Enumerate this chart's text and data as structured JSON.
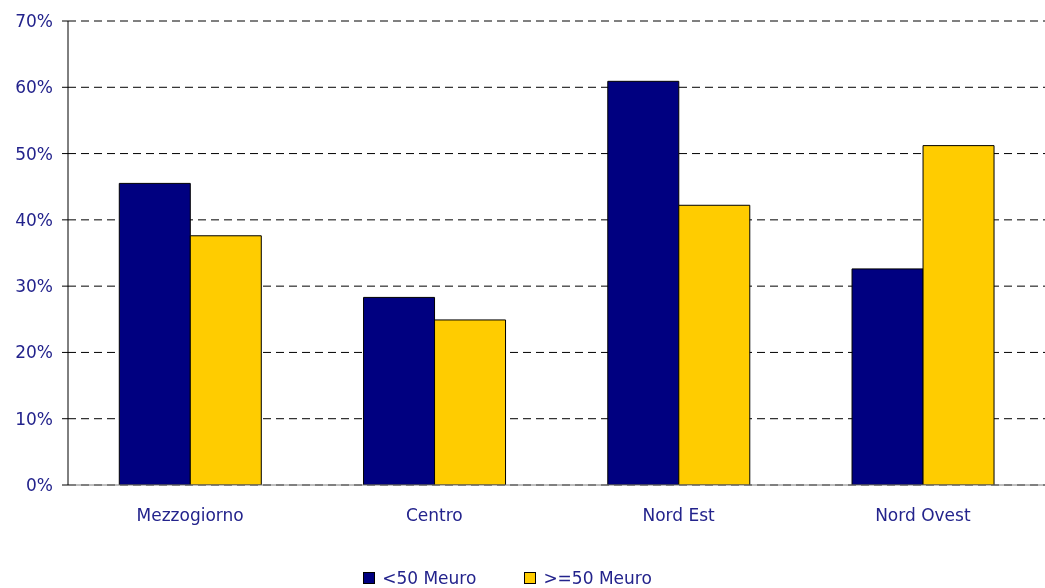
{
  "chart_data": {
    "type": "bar",
    "categories": [
      "Mezzogiorno",
      "Centro",
      "Nord Est",
      "Nord Ovest"
    ],
    "series": [
      {
        "name": "<50 Meuro",
        "color": "#000080",
        "values": [
          45.5,
          28.3,
          60.9,
          32.6
        ]
      },
      {
        "name": ">=50 Meuro",
        "color": "#ffcc00",
        "values": [
          37.6,
          24.9,
          42.2,
          51.2
        ]
      }
    ],
    "ylim": [
      0,
      70
    ],
    "yticks": [
      {
        "value": 0,
        "label": "0%"
      },
      {
        "value": 10,
        "label": "10%"
      },
      {
        "value": 20,
        "label": "20%"
      },
      {
        "value": 30,
        "label": "30%"
      },
      {
        "value": 40,
        "label": "40%"
      },
      {
        "value": 50,
        "label": "50%"
      },
      {
        "value": 60,
        "label": "60%"
      },
      {
        "value": 70,
        "label": "70%"
      }
    ],
    "grid": "y",
    "legend": "bottom"
  }
}
